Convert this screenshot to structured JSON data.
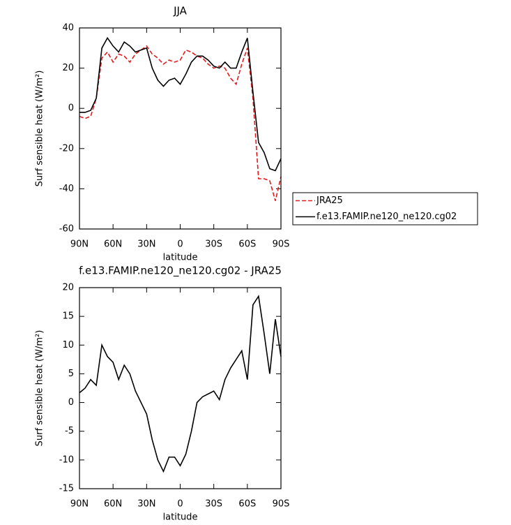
{
  "chart_data": [
    {
      "type": "line",
      "title": "JJA",
      "xlabel": "latitude",
      "ylabel": "Surf sensible heat (W/m²)",
      "x": [
        90,
        85,
        80,
        75,
        70,
        65,
        60,
        55,
        50,
        45,
        40,
        35,
        30,
        25,
        20,
        15,
        10,
        5,
        0,
        -5,
        -10,
        -15,
        -20,
        -25,
        -30,
        -35,
        -40,
        -45,
        -50,
        -55,
        -60,
        -65,
        -70,
        -75,
        -80,
        -85,
        -90
      ],
      "series": [
        {
          "name": "JRA25",
          "color": "#e31a1c",
          "line_style": "dashed",
          "values": [
            -4,
            -5,
            -4,
            5,
            25,
            28,
            23,
            27,
            26,
            23,
            27,
            29,
            31,
            27,
            25,
            22,
            24,
            23,
            24,
            29,
            28,
            26,
            25,
            22,
            20,
            21,
            20,
            15,
            12,
            22,
            30,
            5,
            -35,
            -35,
            -36,
            -46,
            -34
          ]
        },
        {
          "name": "f.e13.FAMIP.ne120_ne120.cg02",
          "color": "#000000",
          "line_style": "solid",
          "values": [
            -2,
            -2,
            -1,
            5,
            30,
            35,
            31,
            28,
            33,
            31,
            28,
            29,
            30,
            20,
            14,
            11,
            14,
            15,
            12,
            17,
            23,
            26,
            26,
            24,
            21,
            20,
            23,
            20,
            20,
            28,
            35,
            8,
            -17,
            -22,
            -30,
            -31,
            -25
          ]
        }
      ],
      "xlim": [
        90,
        -90
      ],
      "xticks": [
        {
          "value": 90,
          "label": "90N"
        },
        {
          "value": 60,
          "label": "60N"
        },
        {
          "value": 30,
          "label": "30N"
        },
        0,
        {
          "value": -30,
          "label": "30S"
        },
        {
          "value": -60,
          "label": "60S"
        },
        {
          "value": -90,
          "label": "90S"
        }
      ],
      "ylim": [
        -60,
        40
      ],
      "yticks": [
        -60,
        -40,
        -20,
        0,
        20,
        40
      ],
      "legend": "outside right"
    },
    {
      "type": "line",
      "title": "f.e13.FAMIP.ne120_ne120.cg02 - JRA25",
      "xlabel": "latitude",
      "ylabel": "Surf sensible heat (W/m²)",
      "x": [
        90,
        85,
        80,
        75,
        70,
        65,
        60,
        55,
        50,
        45,
        40,
        35,
        30,
        25,
        20,
        15,
        10,
        5,
        0,
        -5,
        -10,
        -15,
        -20,
        -25,
        -30,
        -35,
        -40,
        -45,
        -50,
        -55,
        -60,
        -65,
        -70,
        -75,
        -80,
        -85,
        -90
      ],
      "series": [
        {
          "color": "#000000",
          "line_style": "solid",
          "values": [
            1.7,
            2.5,
            4,
            3,
            10,
            8,
            7,
            4,
            6.5,
            5,
            2,
            0,
            -2,
            -6.5,
            -10,
            -12,
            -9.5,
            -9.5,
            -11,
            -9,
            -5,
            0,
            1,
            1.5,
            2,
            0.5,
            4,
            6,
            7.5,
            9,
            4,
            17,
            18.5,
            12,
            5,
            14.5,
            8
          ]
        }
      ],
      "xlim": [
        90,
        -90
      ],
      "xticks": [
        {
          "value": 90,
          "label": "90N"
        },
        {
          "value": 60,
          "label": "60N"
        },
        {
          "value": 30,
          "label": "30N"
        },
        0,
        {
          "value": -30,
          "label": "30S"
        },
        {
          "value": -60,
          "label": "60S"
        },
        {
          "value": -90,
          "label": "90S"
        }
      ],
      "ylim": [
        -15,
        20
      ],
      "yticks": [
        -15,
        -10,
        -5,
        0,
        5,
        10,
        15,
        20
      ]
    }
  ]
}
